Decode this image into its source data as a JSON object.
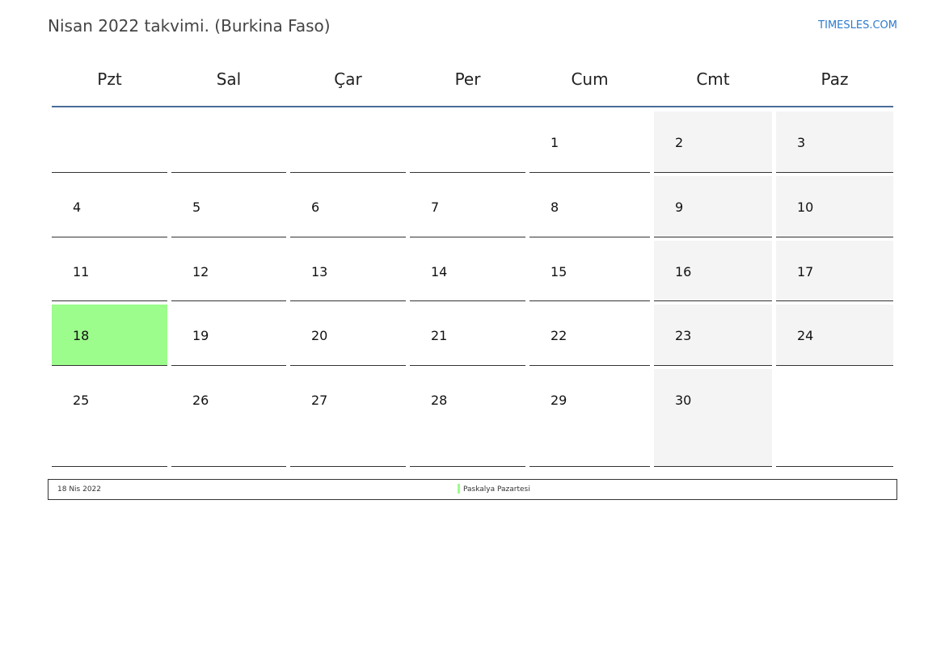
{
  "header": {
    "title": "Nisan 2022 takvimi. (Burkina Faso)",
    "brand": "TIMESLES.COM"
  },
  "weekdays": [
    "Pzt",
    "Sal",
    "Çar",
    "Per",
    "Cum",
    "Cmt",
    "Paz"
  ],
  "weeks": [
    [
      "",
      "",
      "",
      "",
      "1",
      "2",
      "3"
    ],
    [
      "4",
      "5",
      "6",
      "7",
      "8",
      "9",
      "10"
    ],
    [
      "11",
      "12",
      "13",
      "14",
      "15",
      "16",
      "17"
    ],
    [
      "18",
      "19",
      "20",
      "21",
      "22",
      "23",
      "24"
    ],
    [
      "25",
      "26",
      "27",
      "28",
      "29",
      "30",
      ""
    ]
  ],
  "holidays": [
    {
      "day": "18",
      "date_label": "18 Nis 2022",
      "name": "Paskalya Pazartesi",
      "color": "#9cfc8c"
    }
  ],
  "colors": {
    "weekend": "#f4f4f4",
    "header_line": "#4a6d9a",
    "brand": "#2e7bcf"
  }
}
